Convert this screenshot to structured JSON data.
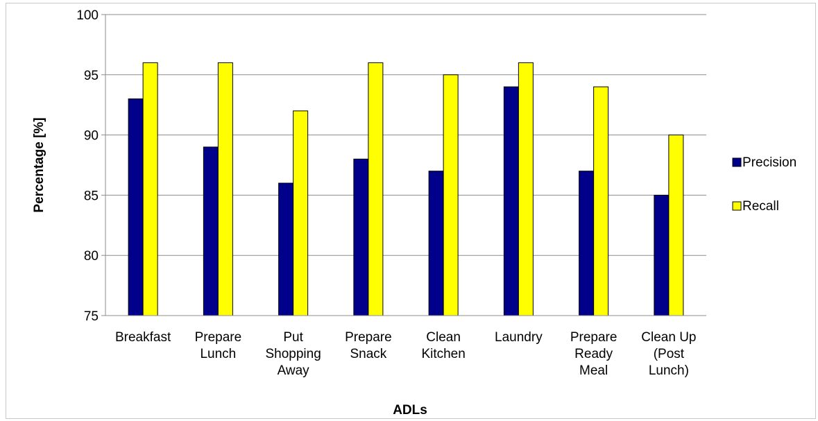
{
  "chart_data": {
    "type": "bar",
    "title": "",
    "xlabel": "ADLs",
    "ylabel": "Percentage [%]",
    "ylim": [
      75,
      100
    ],
    "yticks": [
      "75",
      "80",
      "85",
      "90",
      "95",
      "100"
    ],
    "grid": true,
    "legend_position": "right",
    "categories": [
      [
        "Breakfast"
      ],
      [
        "Prepare",
        "Lunch"
      ],
      [
        "Put",
        "Shopping",
        "Away"
      ],
      [
        "Prepare",
        "Snack"
      ],
      [
        "Clean",
        "Kitchen"
      ],
      [
        "Laundry"
      ],
      [
        "Prepare",
        "Ready",
        "Meal"
      ],
      [
        "Clean Up",
        "(Post",
        "Lunch)"
      ]
    ],
    "series": [
      {
        "name": "Precision",
        "color": "#00008b",
        "values": [
          93,
          89,
          86,
          88,
          87,
          94,
          87,
          85
        ]
      },
      {
        "name": "Recall",
        "color": "#ffff00",
        "values": [
          96,
          96,
          92,
          96,
          95,
          96,
          94,
          90
        ]
      }
    ]
  }
}
